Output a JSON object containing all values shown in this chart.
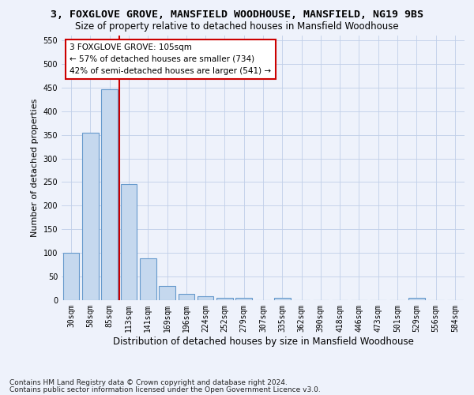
{
  "title": "3, FOXGLOVE GROVE, MANSFIELD WOODHOUSE, MANSFIELD, NG19 9BS",
  "subtitle": "Size of property relative to detached houses in Mansfield Woodhouse",
  "xlabel": "Distribution of detached houses by size in Mansfield Woodhouse",
  "ylabel": "Number of detached properties",
  "footnote1": "Contains HM Land Registry data © Crown copyright and database right 2024.",
  "footnote2": "Contains public sector information licensed under the Open Government Licence v3.0.",
  "bin_labels": [
    "30sqm",
    "58sqm",
    "85sqm",
    "113sqm",
    "141sqm",
    "169sqm",
    "196sqm",
    "224sqm",
    "252sqm",
    "279sqm",
    "307sqm",
    "335sqm",
    "362sqm",
    "390sqm",
    "418sqm",
    "446sqm",
    "473sqm",
    "501sqm",
    "529sqm",
    "556sqm",
    "584sqm"
  ],
  "bar_heights": [
    100,
    355,
    447,
    245,
    88,
    30,
    13,
    9,
    5,
    5,
    0,
    5,
    0,
    0,
    0,
    0,
    0,
    0,
    5,
    0,
    0
  ],
  "bar_color": "#c5d8ee",
  "bar_edge_color": "#6699cc",
  "ylim": [
    0,
    560
  ],
  "yticks": [
    0,
    50,
    100,
    150,
    200,
    250,
    300,
    350,
    400,
    450,
    500,
    550
  ],
  "vline_x_between": 2,
  "vline_color": "#cc0000",
  "annotation_line1": "3 FOXGLOVE GROVE: 105sqm",
  "annotation_line2": "← 57% of detached houses are smaller (734)",
  "annotation_line3": "42% of semi-detached houses are larger (541) →",
  "annotation_box_color": "#ffffff",
  "annotation_box_edge_color": "#cc0000",
  "bg_color": "#eef2fb",
  "grid_color": "#c0cfe8",
  "title_fontsize": 9.5,
  "subtitle_fontsize": 8.5,
  "ylabel_fontsize": 8,
  "xlabel_fontsize": 8.5,
  "tick_fontsize": 7,
  "annot_fontsize": 7.5,
  "footnote_fontsize": 6.5
}
